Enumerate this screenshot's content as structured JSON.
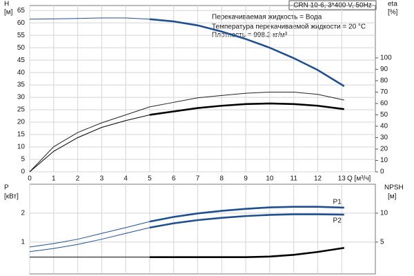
{
  "chart_data": [
    {
      "type": "line",
      "model": "CRN 10-6, 3*400 V, 50Hz",
      "annotations": [
        "Перекачиваемая жидкость = Вода",
        "Температура перекачиваемой жидкости = 20 °C",
        "Плотность = 998.2 кг/м³"
      ],
      "ylabel": "H",
      "yunit": "[м]",
      "y2label": "eta",
      "y2unit": "[%]",
      "xlabel": "Q [м³/ч]",
      "x": [
        0,
        1,
        2,
        3,
        4,
        5,
        6,
        7,
        8,
        9,
        10,
        11,
        12,
        13.1
      ],
      "xlim": [
        0,
        14.4
      ],
      "xticks": [
        0,
        1,
        2,
        3,
        4,
        5,
        6,
        7,
        8,
        9,
        10,
        11,
        12,
        13
      ],
      "ylim": [
        0,
        67
      ],
      "yticks": [
        0,
        5,
        10,
        15,
        20,
        25,
        30,
        35,
        40,
        45,
        50,
        55,
        60,
        65
      ],
      "y2lim": [
        0,
        146
      ],
      "y2ticks": [
        0,
        10,
        20,
        30,
        40,
        50,
        60,
        70,
        80,
        90,
        100
      ],
      "grid": true,
      "series": [
        {
          "color": "#1f4f8f",
          "bold_from": 5,
          "values": [
            61.5,
            61.6,
            61.8,
            62,
            62,
            61.5,
            60.6,
            59,
            56.5,
            53.5,
            50,
            45.8,
            41,
            34.5
          ]
        },
        {
          "color": "#222222",
          "axis": "y2",
          "values": [
            0,
            22,
            34.5,
            43,
            50,
            57,
            61,
            65,
            67,
            69,
            70,
            70,
            68,
            63
          ]
        },
        {
          "color": "#000000",
          "axis": "y2",
          "bold_from": 5,
          "values": [
            0,
            18,
            30,
            39,
            45,
            50,
            53,
            56,
            58,
            59.5,
            60,
            59.5,
            58,
            55
          ]
        }
      ]
    },
    {
      "type": "line",
      "ylabel": "P",
      "yunit": "[кВт]",
      "y2label": "NPSH",
      "y2unit": "[м]",
      "x": [
        0,
        1,
        2,
        3,
        4,
        5,
        6,
        7,
        8,
        9,
        10,
        11,
        12,
        13.1
      ],
      "xlim": [
        0,
        14.4
      ],
      "ylim": [
        -0.1,
        3
      ],
      "yticks": [
        1,
        2
      ],
      "y2lim": [
        -0.5,
        15
      ],
      "y2ticks": [
        5,
        10
      ],
      "grid": true,
      "series": [
        {
          "name": "P1",
          "color": "#1f4f8f",
          "bold_from": 5,
          "values": [
            0.83,
            0.95,
            1.1,
            1.3,
            1.5,
            1.71,
            1.87,
            1.99,
            2.08,
            2.15,
            2.2,
            2.22,
            2.22,
            2.19
          ]
        },
        {
          "name": "P2",
          "color": "#1f4f8f",
          "bold_from": 5,
          "values": [
            0.67,
            0.78,
            0.92,
            1.1,
            1.3,
            1.5,
            1.65,
            1.76,
            1.84,
            1.9,
            1.94,
            1.96,
            1.96,
            1.95
          ]
        },
        {
          "color": "#000000",
          "axis": "y2",
          "bold_from": 5,
          "values": [
            2.4,
            2.4,
            2.4,
            2.4,
            2.4,
            2.4,
            2.4,
            2.4,
            2.4,
            2.4,
            2.5,
            2.8,
            3.3,
            4.0
          ]
        }
      ]
    }
  ]
}
